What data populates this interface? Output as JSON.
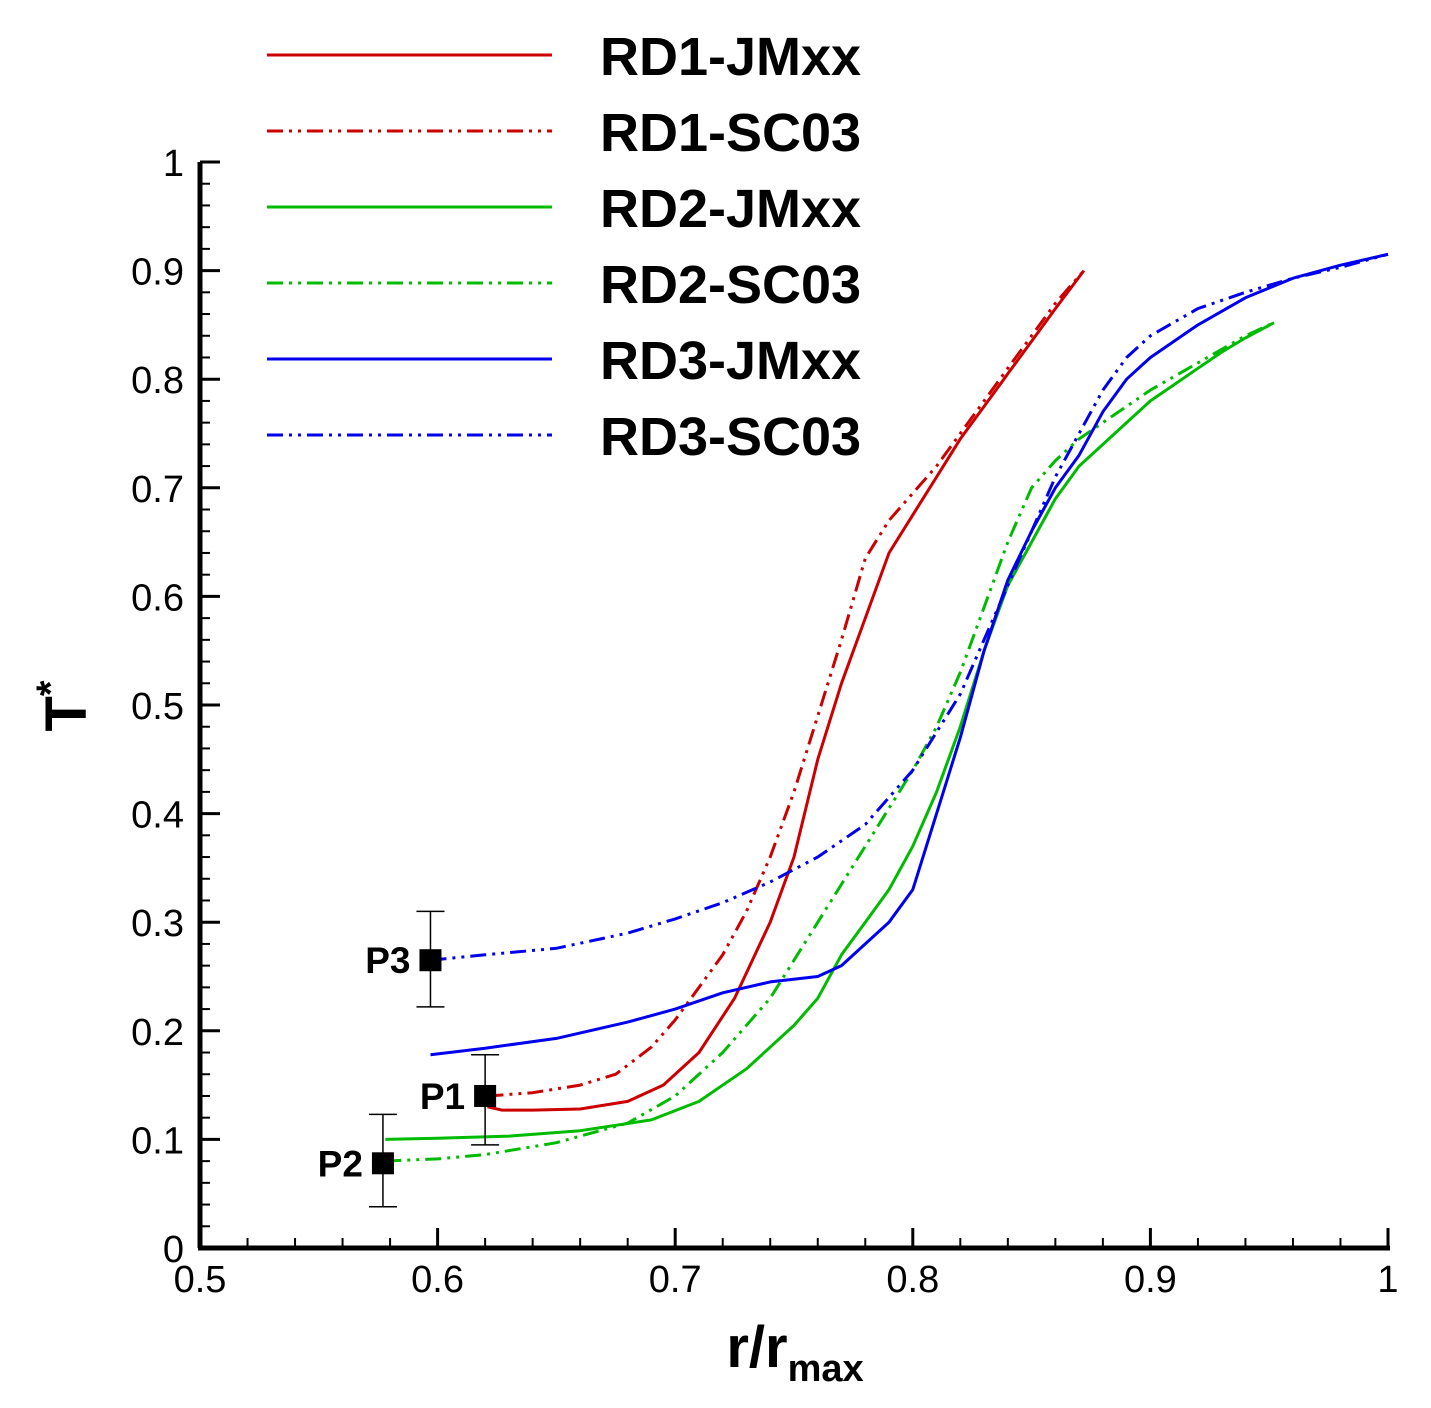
{
  "chart_data": {
    "type": "line",
    "xlabel": {
      "main": "r/r",
      "sub": "max"
    },
    "ylabel": {
      "main": "T",
      "sup": "*"
    },
    "xlim": [
      0.5,
      1.0
    ],
    "ylim": [
      0,
      1.0
    ],
    "xticks": [
      "0.5",
      "0.6",
      "0.7",
      "0.8",
      "0.9",
      "1"
    ],
    "yticks": [
      "0",
      "0.1",
      "0.2",
      "0.3",
      "0.4",
      "0.5",
      "0.6",
      "0.7",
      "0.8",
      "0.9",
      "1"
    ],
    "grid": false,
    "legend_position": "top-left",
    "series": [
      {
        "name": "RD1-JMxx",
        "color": "#cc0000",
        "dash": "solid",
        "x": [
          0.621,
          0.627,
          0.64,
          0.66,
          0.68,
          0.695,
          0.71,
          0.725,
          0.74,
          0.75,
          0.76,
          0.77,
          0.78,
          0.79,
          0.8,
          0.81,
          0.82,
          0.83,
          0.84,
          0.85,
          0.86,
          0.872
        ],
        "y": [
          0.13,
          0.127,
          0.127,
          0.128,
          0.135,
          0.15,
          0.18,
          0.23,
          0.3,
          0.36,
          0.45,
          0.52,
          0.58,
          0.64,
          0.675,
          0.71,
          0.745,
          0.775,
          0.805,
          0.835,
          0.865,
          0.9
        ]
      },
      {
        "name": "RD1-SC03",
        "color": "#cc0000",
        "dash": "dashdotdot",
        "x": [
          0.621,
          0.64,
          0.66,
          0.675,
          0.69,
          0.7,
          0.71,
          0.72,
          0.73,
          0.74,
          0.75,
          0.76,
          0.77,
          0.78,
          0.79,
          0.8,
          0.81,
          0.82,
          0.83,
          0.84,
          0.85,
          0.86,
          0.872
        ],
        "y": [
          0.14,
          0.143,
          0.15,
          0.16,
          0.185,
          0.21,
          0.24,
          0.27,
          0.31,
          0.36,
          0.42,
          0.49,
          0.56,
          0.635,
          0.67,
          0.695,
          0.72,
          0.75,
          0.78,
          0.81,
          0.84,
          0.87,
          0.9
        ]
      },
      {
        "name": "RD2-JMxx",
        "color": "#00bb00",
        "dash": "solid",
        "x": [
          0.578,
          0.6,
          0.63,
          0.66,
          0.69,
          0.71,
          0.73,
          0.75,
          0.76,
          0.77,
          0.78,
          0.79,
          0.8,
          0.81,
          0.82,
          0.83,
          0.84,
          0.85,
          0.86,
          0.87,
          0.88,
          0.89,
          0.9,
          0.91,
          0.92,
          0.93,
          0.94,
          0.952
        ],
        "y": [
          0.1,
          0.101,
          0.103,
          0.108,
          0.118,
          0.135,
          0.165,
          0.205,
          0.23,
          0.27,
          0.3,
          0.33,
          0.37,
          0.42,
          0.48,
          0.55,
          0.61,
          0.65,
          0.69,
          0.72,
          0.74,
          0.76,
          0.78,
          0.795,
          0.81,
          0.825,
          0.838,
          0.852
        ]
      },
      {
        "name": "RD2-SC03",
        "color": "#00bb00",
        "dash": "dashdotdot",
        "x": [
          0.578,
          0.6,
          0.62,
          0.65,
          0.68,
          0.7,
          0.72,
          0.74,
          0.76,
          0.78,
          0.8,
          0.81,
          0.82,
          0.83,
          0.84,
          0.85,
          0.86,
          0.87,
          0.88,
          0.89,
          0.9,
          0.92,
          0.94,
          0.952
        ],
        "y": [
          0.08,
          0.082,
          0.086,
          0.097,
          0.115,
          0.14,
          0.18,
          0.23,
          0.3,
          0.37,
          0.44,
          0.48,
          0.53,
          0.59,
          0.65,
          0.7,
          0.725,
          0.745,
          0.76,
          0.775,
          0.79,
          0.815,
          0.84,
          0.852
        ]
      },
      {
        "name": "RD3-JMxx",
        "color": "#0000ee",
        "dash": "solid",
        "x": [
          0.597,
          0.62,
          0.65,
          0.68,
          0.7,
          0.72,
          0.74,
          0.76,
          0.77,
          0.78,
          0.79,
          0.8,
          0.81,
          0.82,
          0.83,
          0.84,
          0.85,
          0.86,
          0.87,
          0.88,
          0.89,
          0.9,
          0.92,
          0.94,
          0.96,
          0.98,
          1.0
        ],
        "y": [
          0.178,
          0.184,
          0.193,
          0.208,
          0.22,
          0.235,
          0.245,
          0.25,
          0.26,
          0.28,
          0.3,
          0.33,
          0.4,
          0.47,
          0.55,
          0.615,
          0.66,
          0.7,
          0.73,
          0.77,
          0.8,
          0.82,
          0.85,
          0.875,
          0.893,
          0.905,
          0.915
        ]
      },
      {
        "name": "RD3-SC03",
        "color": "#0000ee",
        "dash": "dashdotdot",
        "x": [
          0.597,
          0.62,
          0.65,
          0.68,
          0.7,
          0.72,
          0.74,
          0.76,
          0.78,
          0.8,
          0.82,
          0.84,
          0.85,
          0.86,
          0.87,
          0.88,
          0.89,
          0.9,
          0.92,
          0.94,
          0.96,
          0.98,
          1.0
        ],
        "y": [
          0.265,
          0.27,
          0.276,
          0.29,
          0.303,
          0.318,
          0.337,
          0.36,
          0.39,
          0.44,
          0.51,
          0.61,
          0.66,
          0.71,
          0.75,
          0.79,
          0.82,
          0.84,
          0.865,
          0.88,
          0.893,
          0.903,
          0.915
        ]
      }
    ],
    "reference_points": [
      {
        "label": "P1",
        "x": 0.62,
        "y": 0.14,
        "err_low": 0.095,
        "err_high": 0.178
      },
      {
        "label": "P2",
        "x": 0.577,
        "y": 0.078,
        "err_low": 0.038,
        "err_high": 0.123
      },
      {
        "label": "P3",
        "x": 0.597,
        "y": 0.265,
        "err_low": 0.222,
        "err_high": 0.31
      }
    ]
  }
}
